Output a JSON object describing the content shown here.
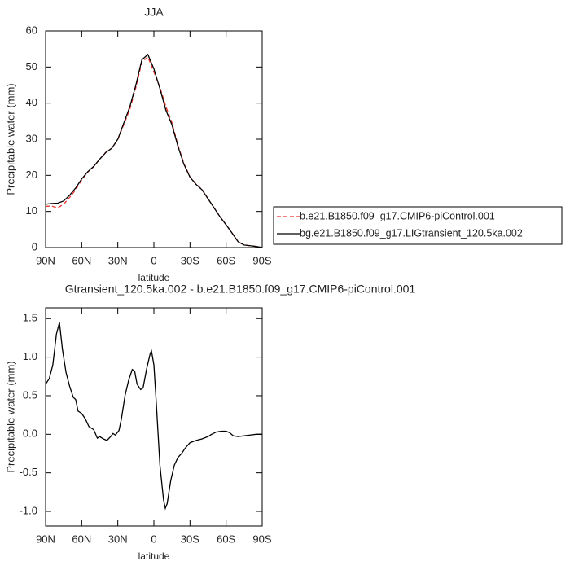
{
  "chart_data": [
    {
      "type": "line",
      "title": "JJA",
      "xlabel": "latitude",
      "ylabel": "Precipitable water (mm)",
      "x": [
        90,
        85,
        80,
        75,
        70,
        65,
        60,
        55,
        50,
        45,
        40,
        35,
        30,
        25,
        20,
        15,
        10,
        5,
        0,
        -5,
        -10,
        -15,
        -20,
        -25,
        -30,
        -35,
        -40,
        -45,
        -50,
        -55,
        -60,
        -65,
        -70,
        -75,
        -80,
        -85,
        -90
      ],
      "series": [
        {
          "name": "b.e21.B1850.f09_g17.CMIP6-piControl.001",
          "color": "#e8332a",
          "dash": "dashed",
          "values": [
            11.4,
            11.5,
            11.0,
            12.0,
            13.9,
            16.0,
            18.7,
            20.9,
            22.4,
            24.5,
            26.4,
            27.5,
            29.9,
            34.1,
            38.3,
            44.3,
            51.4,
            52.8,
            48.6,
            44.4,
            39.0,
            34.6,
            28.3,
            23.2,
            19.6,
            17.6,
            16.1,
            13.5,
            11.0,
            8.5,
            6.3,
            4.0,
            1.6,
            0.7,
            0.5,
            0.3,
            0.0
          ]
        },
        {
          "name": "bg.e21.B1850.f09_g17.LIGtransient_120.5ka.002",
          "color": "#000000",
          "dash": "solid",
          "values": [
            12.0,
            12.2,
            12.3,
            12.9,
            14.5,
            16.5,
            19.0,
            21.0,
            22.5,
            24.5,
            26.3,
            27.5,
            30.0,
            34.5,
            39.0,
            45.0,
            52.0,
            53.5,
            49.5,
            44.0,
            38.0,
            34.0,
            28.0,
            23.0,
            19.5,
            17.5,
            16.0,
            13.5,
            11.0,
            8.5,
            6.3,
            4.0,
            1.6,
            0.7,
            0.5,
            0.3,
            0.0
          ]
        }
      ],
      "xlim": [
        90,
        -90
      ],
      "xticks": [
        {
          "value": 90,
          "label": "90N"
        },
        {
          "value": 60,
          "label": "60N"
        },
        {
          "value": 30,
          "label": "30N"
        },
        0,
        {
          "value": -30,
          "label": "30S"
        },
        {
          "value": -60,
          "label": "60S"
        },
        {
          "value": -90,
          "label": "90S"
        }
      ],
      "ylim": [
        0,
        60
      ],
      "yticks": [
        0,
        10,
        20,
        30,
        40,
        50,
        60
      ],
      "legend": "right"
    },
    {
      "type": "line",
      "title": "Gtransient_120.5ka.002 - b.e21.B1850.f09_g17.CMIP6-piControl.001",
      "xlabel": "latitude",
      "ylabel": "Precipitable water (mm)",
      "x": [
        90,
        87,
        84,
        81,
        78.5,
        76,
        73,
        70,
        67,
        65,
        63,
        60,
        57,
        54,
        50,
        47,
        45,
        42,
        39,
        36,
        34,
        32,
        29,
        27,
        24,
        21,
        18,
        16,
        14,
        11,
        9,
        6,
        3,
        2,
        0,
        -2,
        -5,
        -8,
        -9.5,
        -11,
        -14,
        -17,
        -20,
        -23,
        -26,
        -30,
        -35,
        -40,
        -45,
        -48,
        -52,
        -56,
        -60,
        -63,
        -66,
        -70,
        -75,
        -80,
        -85,
        -90
      ],
      "series": [
        {
          "color": "#000000",
          "dash": "solid",
          "values": [
            0.65,
            0.72,
            0.9,
            1.3,
            1.45,
            1.1,
            0.8,
            0.62,
            0.48,
            0.45,
            0.3,
            0.27,
            0.2,
            0.1,
            0.06,
            -0.05,
            -0.03,
            -0.06,
            -0.08,
            -0.03,
            0.01,
            -0.01,
            0.05,
            0.2,
            0.5,
            0.7,
            0.84,
            0.82,
            0.65,
            0.58,
            0.6,
            0.85,
            1.05,
            1.08,
            0.9,
            0.4,
            -0.4,
            -0.85,
            -0.96,
            -0.9,
            -0.6,
            -0.4,
            -0.3,
            -0.25,
            -0.18,
            -0.11,
            -0.08,
            -0.06,
            -0.03,
            0.0,
            0.03,
            0.04,
            0.04,
            0.02,
            -0.02,
            -0.03,
            -0.02,
            -0.01,
            0.0,
            0.0
          ]
        }
      ],
      "xlim": [
        90,
        -90
      ],
      "xticks": [
        {
          "value": 90,
          "label": "90N"
        },
        {
          "value": 60,
          "label": "60N"
        },
        {
          "value": 30,
          "label": "30N"
        },
        0,
        {
          "value": -30,
          "label": "30S"
        },
        {
          "value": -60,
          "label": "60S"
        },
        {
          "value": -90,
          "label": "90S"
        }
      ],
      "ylim": [
        -1.19,
        1.64
      ],
      "yticks": [
        {
          "value": -1,
          "label": "-1.0"
        },
        -0.5,
        {
          "value": 0,
          "label": "0.0"
        },
        0.5,
        {
          "value": 1,
          "label": "1.0"
        },
        1.5
      ]
    }
  ]
}
